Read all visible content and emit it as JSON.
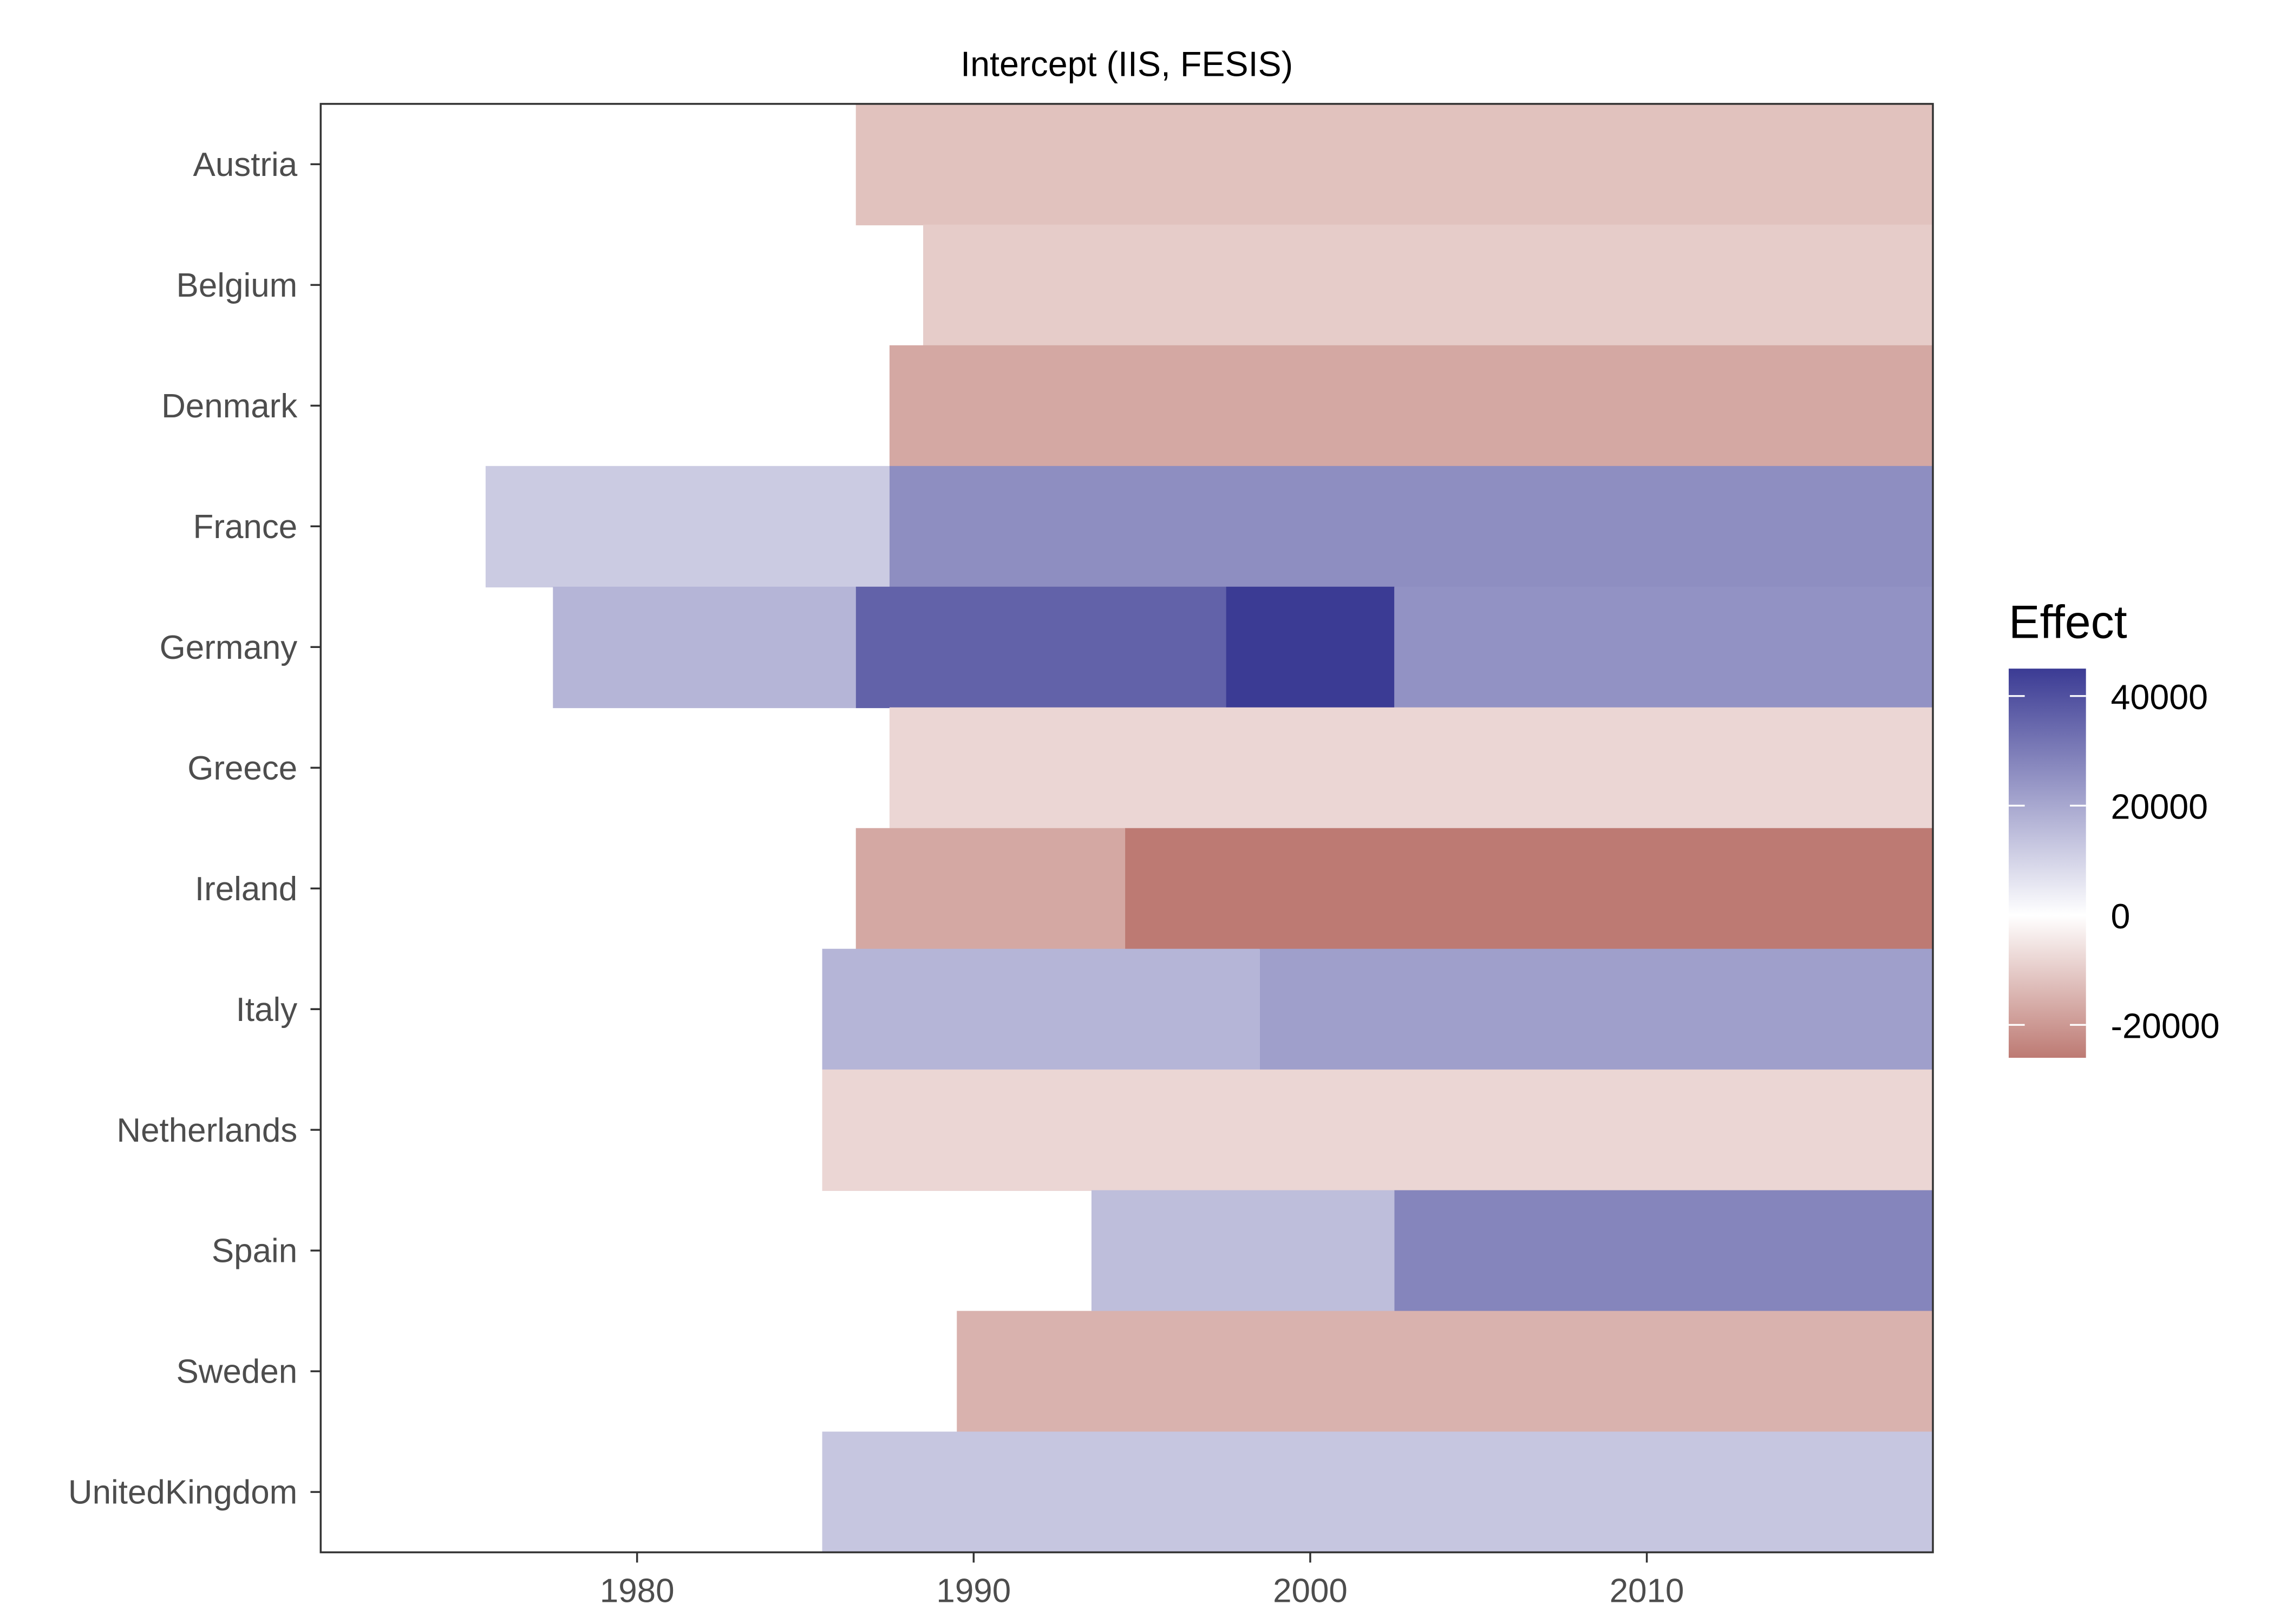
{
  "chart_data": {
    "type": "heatmap",
    "title": "Intercept (IIS, FESIS)",
    "xlabel": "",
    "ylabel": "",
    "xlim": [
      1970.6,
      2018.5
    ],
    "x_ticks": [
      1980,
      1990,
      2000,
      2010
    ],
    "categories": [
      "Austria",
      "Belgium",
      "Denmark",
      "France",
      "Germany",
      "Greece",
      "Ireland",
      "Italy",
      "Netherlands",
      "Spain",
      "Sweden",
      "UnitedKingdom"
    ],
    "grid": false,
    "legend": {
      "title": "Effect",
      "position": "right",
      "ticks": [
        40000,
        20000,
        0,
        -20000
      ],
      "range": [
        -26000,
        45000
      ],
      "colors": {
        "low": "#BD7A73",
        "mid": "#FFFFFF",
        "high": "#3B3B94"
      }
    },
    "segments": [
      {
        "country": "Austria",
        "start": 1987,
        "end": 2018,
        "value": -12000
      },
      {
        "country": "Belgium",
        "start": 1989,
        "end": 2018,
        "value": -10000
      },
      {
        "country": "Denmark",
        "start": 1988,
        "end": 2018,
        "value": -17000
      },
      {
        "country": "France",
        "start": 1976,
        "end": 1987,
        "value": 12000
      },
      {
        "country": "France",
        "start": 1988,
        "end": 2018,
        "value": 26000
      },
      {
        "country": "Germany",
        "start": 1978,
        "end": 1986,
        "value": 17000
      },
      {
        "country": "Germany",
        "start": 1987,
        "end": 1997,
        "value": 36000
      },
      {
        "country": "Germany",
        "start": 1998,
        "end": 2002,
        "value": 45000
      },
      {
        "country": "Germany",
        "start": 2003,
        "end": 2018,
        "value": 25000
      },
      {
        "country": "Greece",
        "start": 1988,
        "end": 2018,
        "value": -8000
      },
      {
        "country": "Ireland",
        "start": 1987,
        "end": 1994,
        "value": -17000
      },
      {
        "country": "Ireland",
        "start": 1995,
        "end": 2018,
        "value": -26000
      },
      {
        "country": "Italy",
        "start": 1986,
        "end": 1998,
        "value": 17000
      },
      {
        "country": "Italy",
        "start": 1999,
        "end": 2018,
        "value": 22000
      },
      {
        "country": "Netherlands",
        "start": 1986,
        "end": 2018,
        "value": -8000
      },
      {
        "country": "Spain",
        "start": 1994,
        "end": 2002,
        "value": 15000
      },
      {
        "country": "Spain",
        "start": 2003,
        "end": 2018,
        "value": 28000
      },
      {
        "country": "Sweden",
        "start": 1990,
        "end": 2018,
        "value": -15000
      },
      {
        "country": "UnitedKingdom",
        "start": 1986,
        "end": 2018,
        "value": 13000
      }
    ]
  }
}
